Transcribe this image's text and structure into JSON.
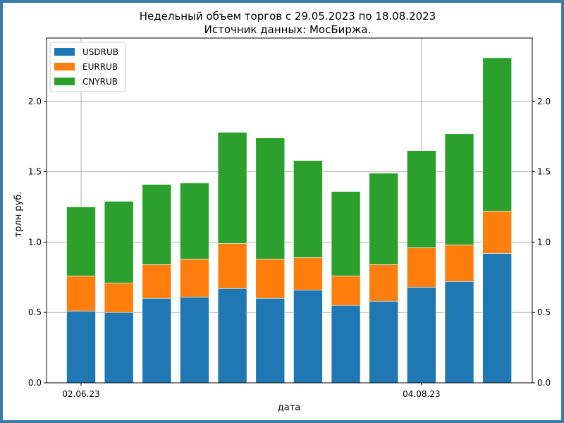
{
  "chart_data": {
    "type": "bar",
    "stacked": true,
    "title_line1": "Недельный объем торгов с 29.05.2023 по 18.08.2023",
    "title_line2": "Источник данных: МосБиржа.",
    "xlabel": "дата",
    "ylabel": "трлн руб.",
    "ylim": [
      0,
      2.45
    ],
    "yticks": [
      0.0,
      0.5,
      1.0,
      1.5,
      2.0
    ],
    "ytick_labels": [
      "0.0",
      "0.5",
      "1.0",
      "1.5",
      "2.0"
    ],
    "xtick_labels": [
      {
        "bar_index": 0,
        "label": "02.06.23"
      },
      {
        "bar_index": 9,
        "label": "04.08.23"
      }
    ],
    "grid": true,
    "legend_position": "top-left",
    "series": [
      {
        "name": "USDRUB",
        "color": "#1f77b4",
        "values": [
          0.51,
          0.5,
          0.6,
          0.61,
          0.67,
          0.6,
          0.66,
          0.55,
          0.58,
          0.68,
          0.72,
          0.92
        ]
      },
      {
        "name": "EURRUB",
        "color": "#ff7f0e",
        "values": [
          0.25,
          0.21,
          0.24,
          0.27,
          0.32,
          0.28,
          0.23,
          0.21,
          0.26,
          0.28,
          0.26,
          0.3
        ]
      },
      {
        "name": "CNYRUB",
        "color": "#2ca02c",
        "values": [
          0.49,
          0.58,
          0.57,
          0.54,
          0.79,
          0.86,
          0.69,
          0.6,
          0.65,
          0.69,
          0.79,
          1.09
        ]
      }
    ]
  }
}
